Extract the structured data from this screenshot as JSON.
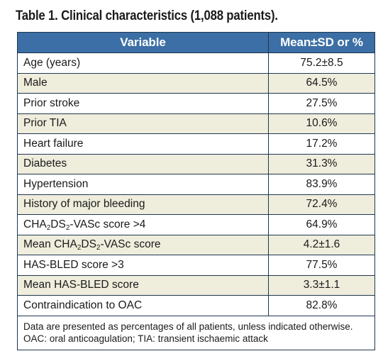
{
  "caption": "Table 1. Clinical characteristics (1,088 patients).",
  "header": {
    "variable": "Variable",
    "value": "Mean±SD or %"
  },
  "rows": [
    {
      "label": "Age (years)",
      "value": "75.2±8.5"
    },
    {
      "label": "Male",
      "value": "64.5%"
    },
    {
      "label": "Prior stroke",
      "value": "27.5%"
    },
    {
      "label": "Prior TIA",
      "value": "10.6%"
    },
    {
      "label": "Heart failure",
      "value": "17.2%"
    },
    {
      "label": "Diabetes",
      "value": "31.3%"
    },
    {
      "label": "Hypertension",
      "value": "83.9%"
    },
    {
      "label": "History of major bleeding",
      "value": "72.4%"
    },
    {
      "label_prefix": "CHA",
      "label_sub1": "2",
      "label_mid": "DS",
      "label_sub2": "2",
      "label_suffix": "-VASc score >4",
      "value": "64.9%"
    },
    {
      "label_prefix": "Mean CHA",
      "label_sub1": "2",
      "label_mid": "DS",
      "label_sub2": "2",
      "label_suffix": "-VASc score",
      "value": "4.2±1.6"
    },
    {
      "label": "HAS-BLED score >3",
      "value": "77.5%"
    },
    {
      "label": "Mean HAS-BLED score",
      "value": "3.3±1.1"
    },
    {
      "label": "Contraindication to OAC",
      "value": "82.8%"
    }
  ],
  "footnote": "Data are presented as percentages of all patients, unless indicated otherwise. OAC: oral anticoagulation; TIA: transient ischaemic attack",
  "colors": {
    "header_bg": "#3b6fa5",
    "stripe_bg": "#efeddc",
    "border": "#1f3650"
  }
}
